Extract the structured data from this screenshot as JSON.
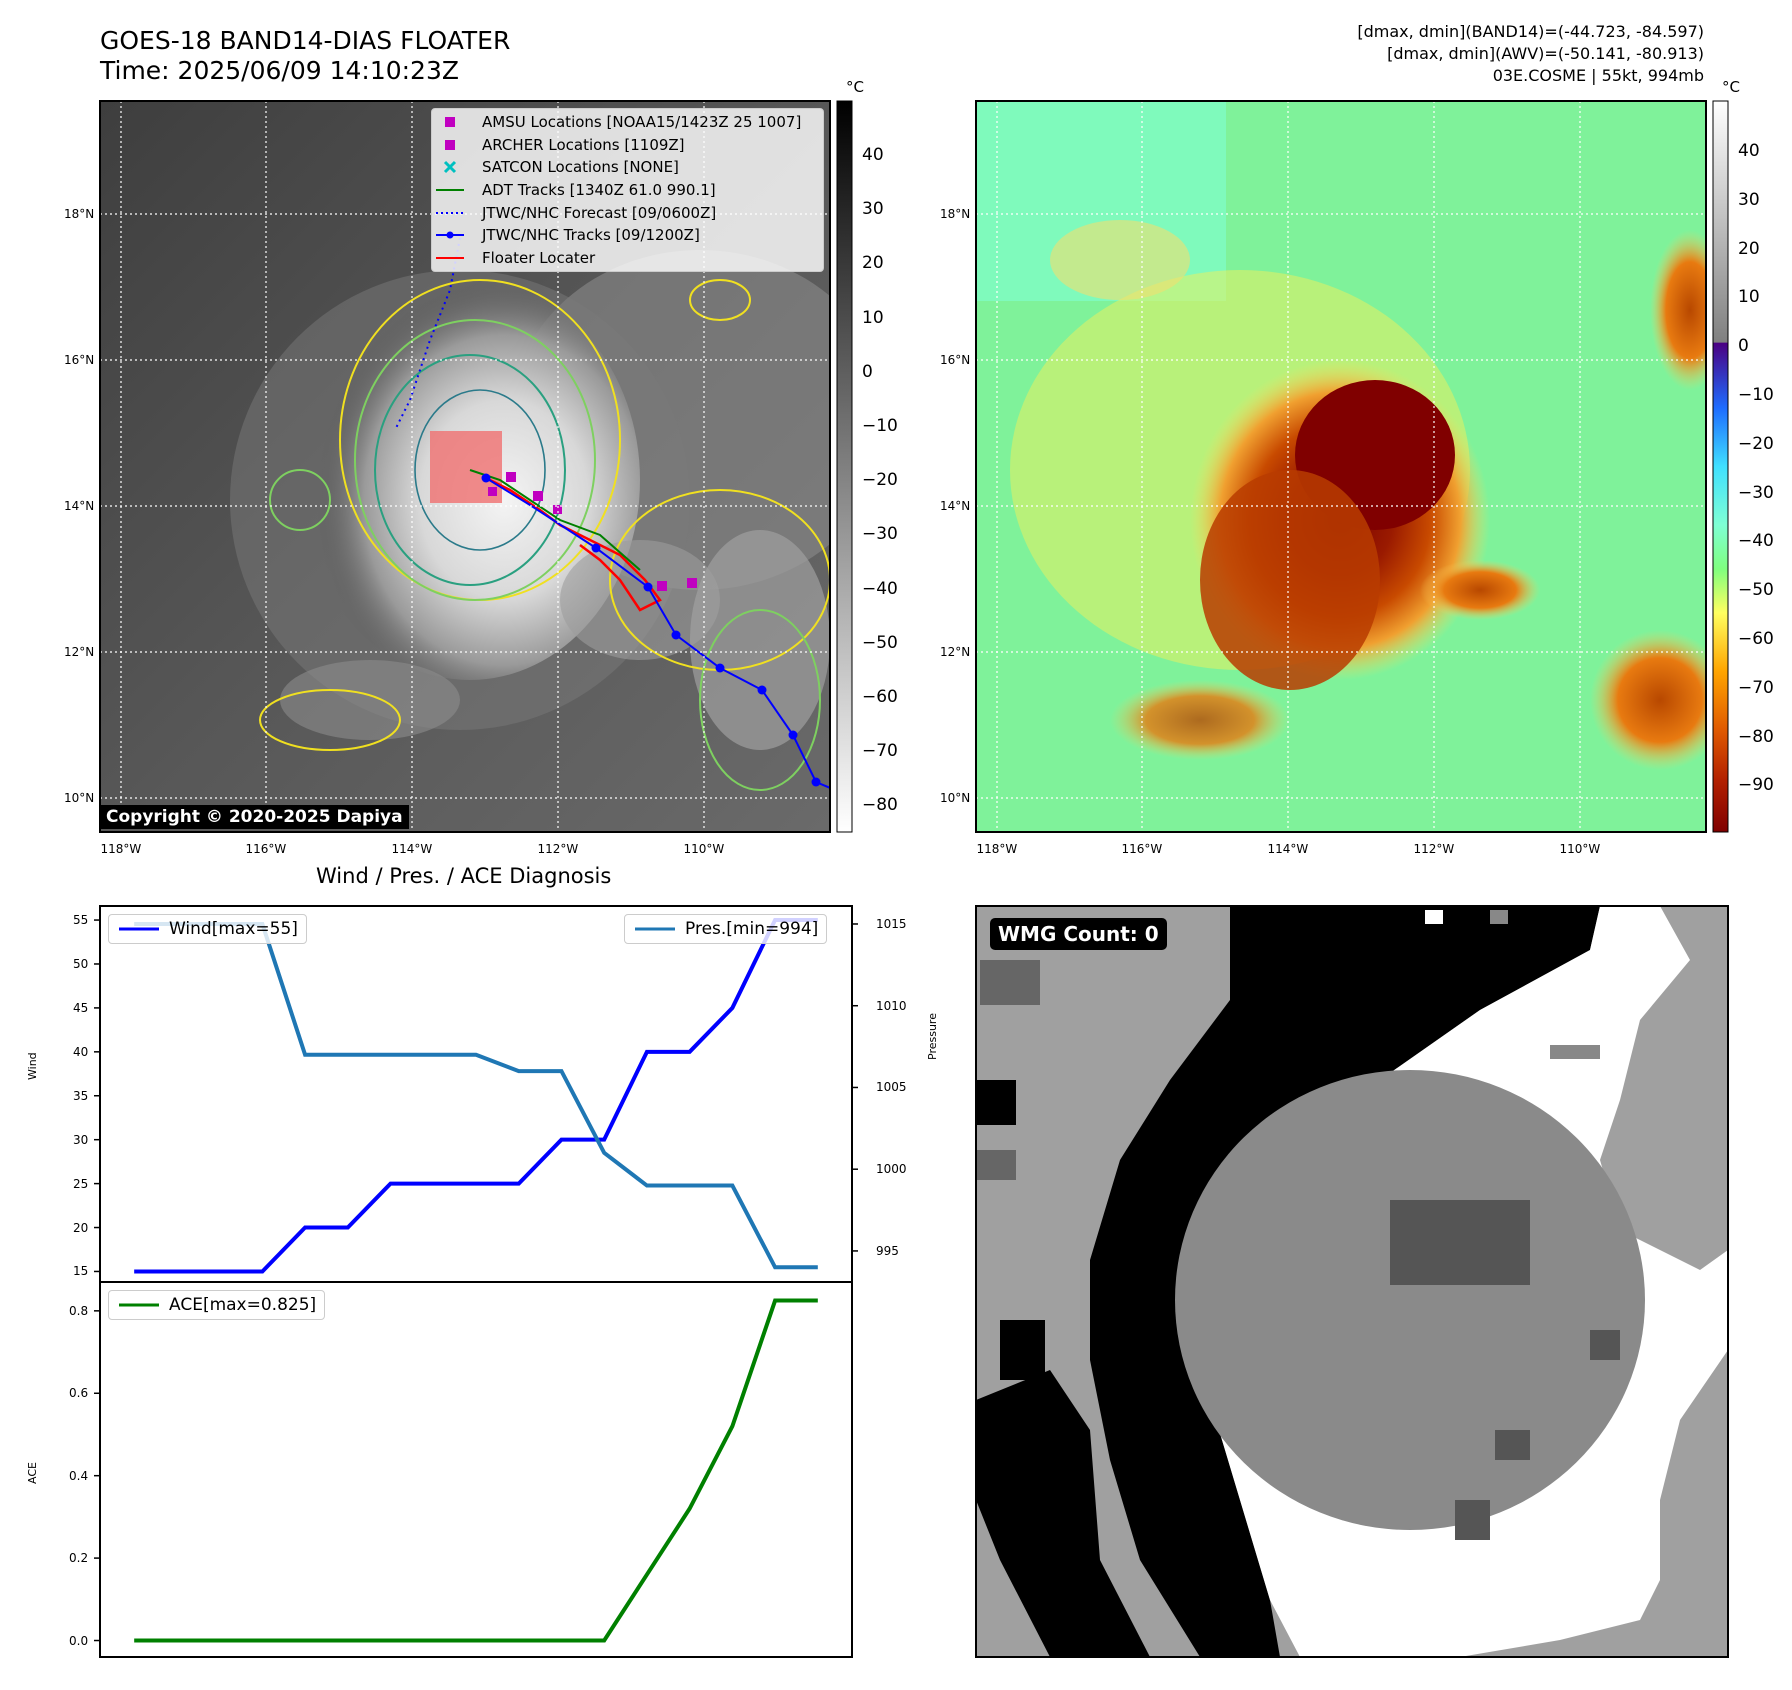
{
  "header": {
    "title_line1": "GOES-18 BAND14-DIAS FLOATER",
    "title_line2": "Time: 2025/06/09 14:10:23Z",
    "info_line1": "[dmax, dmin](BAND14)=(-44.723, -84.597)",
    "info_line2": "[dmax, dmin](AWV)=(-50.141, -80.913)",
    "info_line3": "03E.COSME | 55kt, 994mb"
  },
  "map_left": {
    "copyright": "Copyright © 2020-2025 Dapiya",
    "colorbar_unit": "°C",
    "colorbar_ticks": [
      "40",
      "30",
      "20",
      "10",
      "0",
      "−10",
      "−20",
      "−30",
      "−40",
      "−50",
      "−60",
      "−70",
      "−80"
    ],
    "lat_labels": [
      "18°N",
      "16°N",
      "14°N",
      "12°N",
      "10°N"
    ],
    "lon_labels": [
      "118°W",
      "116°W",
      "114°W",
      "112°W",
      "110°W"
    ],
    "legend": [
      {
        "label": "AMSU Locations [NOAA15/1423Z 25 1007]",
        "key": "square",
        "color": "#c000c0"
      },
      {
        "label": "ARCHER Locations [1109Z]",
        "key": "square",
        "color": "#c000c0"
      },
      {
        "label": "SATCON Locations [NONE]",
        "key": "x",
        "color": "#00c0c0"
      },
      {
        "label": "ADT Tracks [1340Z 61.0 990.1]",
        "key": "line",
        "color": "#008000"
      },
      {
        "label": "JTWC/NHC Forecast [09/0600Z]",
        "key": "dotted",
        "color": "#0000ff"
      },
      {
        "label": "JTWC/NHC Tracks [09/1200Z]",
        "key": "linemarker",
        "color": "#0000ff"
      },
      {
        "label": "Floater Locater",
        "key": "line",
        "color": "#ff0000"
      }
    ]
  },
  "map_right": {
    "colorbar_unit": "°C",
    "colorbar_ticks": [
      "40",
      "30",
      "20",
      "10",
      "0",
      "−10",
      "−20",
      "−30",
      "−40",
      "−50",
      "−60",
      "−70",
      "−80",
      "−90"
    ],
    "lat_labels": [
      "18°N",
      "16°N",
      "14°N",
      "12°N",
      "10°N"
    ],
    "lon_labels": [
      "118°W",
      "116°W",
      "114°W",
      "112°W",
      "110°W"
    ]
  },
  "diagnosis": {
    "title": "Wind / Pres. / ACE Diagnosis",
    "wind_axis_label": "Wind",
    "pres_axis_label": "Pressure",
    "ace_axis_label": "ACE",
    "wind_legend": "Wind[max=55]",
    "pres_legend": "Pres.[min=994]",
    "ace_legend": "ACE[max=0.825]"
  },
  "wmg": {
    "label": "WMG Count: 0"
  },
  "colors": {
    "wind": "#0000ff",
    "pressure": "#1f77b4",
    "ace": "#008000"
  },
  "chart_data": [
    {
      "type": "line",
      "title": "Wind / Pres. / ACE Diagnosis",
      "x": [
        0,
        1,
        2,
        3,
        4,
        5,
        6,
        7,
        8,
        9,
        10,
        11,
        12,
        13,
        14,
        15,
        16
      ],
      "series": [
        {
          "name": "Wind[max=55]",
          "axis": "left",
          "values": [
            15,
            15,
            15,
            15,
            20,
            20,
            25,
            25,
            25,
            25,
            30,
            30,
            40,
            40,
            45,
            55,
            55
          ]
        },
        {
          "name": "Pres.[min=994]",
          "axis": "right",
          "values": [
            1015,
            1015,
            1015,
            1015,
            1007,
            1007,
            1007,
            1007,
            1007,
            1006,
            1006,
            1001,
            999,
            999,
            999,
            994,
            994
          ]
        }
      ],
      "ylabel": "Wind",
      "y2label": "Pressure",
      "yticks": [
        15,
        20,
        25,
        30,
        35,
        40,
        45,
        50,
        55
      ],
      "y2ticks": [
        995,
        1000,
        1005,
        1010,
        1015
      ],
      "ylim": [
        13.8,
        56.6
      ],
      "y2lim": [
        993.1,
        1016.1
      ]
    },
    {
      "type": "line",
      "x": [
        0,
        1,
        2,
        3,
        4,
        5,
        6,
        7,
        8,
        9,
        10,
        11,
        12,
        13,
        14,
        15,
        16
      ],
      "series": [
        {
          "name": "ACE[max=0.825]",
          "values": [
            0,
            0,
            0,
            0,
            0,
            0,
            0,
            0,
            0,
            0,
            0,
            0,
            0.16,
            0.32,
            0.52,
            0.825,
            0.825
          ]
        }
      ],
      "ylabel": "ACE",
      "yticks": [
        0.0,
        0.2,
        0.4,
        0.6,
        0.8
      ],
      "ylim": [
        -0.04,
        0.87
      ]
    }
  ]
}
